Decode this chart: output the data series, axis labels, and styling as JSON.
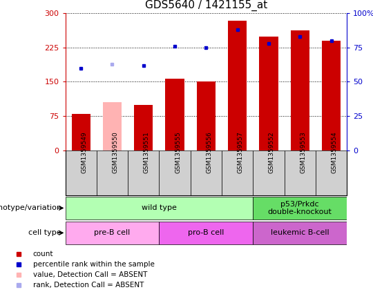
{
  "title": "GDS5640 / 1421155_at",
  "samples": [
    "GSM1359549",
    "GSM1359550",
    "GSM1359551",
    "GSM1359555",
    "GSM1359556",
    "GSM1359557",
    "GSM1359552",
    "GSM1359553",
    "GSM1359554"
  ],
  "bar_values": [
    80,
    105,
    100,
    157,
    150,
    283,
    248,
    263,
    240
  ],
  "bar_colors": [
    "#cc0000",
    "#ffb3b3",
    "#cc0000",
    "#cc0000",
    "#cc0000",
    "#cc0000",
    "#cc0000",
    "#cc0000",
    "#cc0000"
  ],
  "dot_values": [
    60,
    63,
    62,
    76,
    75,
    88,
    78,
    83,
    80
  ],
  "dot_colors": [
    "#0000cc",
    "#aaaaee",
    "#0000cc",
    "#0000cc",
    "#0000cc",
    "#0000cc",
    "#0000cc",
    "#0000cc",
    "#0000cc"
  ],
  "ylim_left": [
    0,
    300
  ],
  "ylim_right": [
    0,
    100
  ],
  "yticks_left": [
    0,
    75,
    150,
    225,
    300
  ],
  "yticks_right": [
    0,
    25,
    50,
    75,
    100
  ],
  "ytick_labels_left": [
    "0",
    "75",
    "150",
    "225",
    "300"
  ],
  "ytick_labels_right": [
    "0",
    "25",
    "50",
    "75",
    "100%"
  ],
  "genotype_groups": [
    {
      "label": "wild type",
      "start": 0,
      "end": 6,
      "color": "#b3ffb3"
    },
    {
      "label": "p53/Prkdc\ndouble-knockout",
      "start": 6,
      "end": 9,
      "color": "#66dd66"
    }
  ],
  "celltype_groups": [
    {
      "label": "pre-B cell",
      "start": 0,
      "end": 3,
      "color": "#ffaaee"
    },
    {
      "label": "pro-B cell",
      "start": 3,
      "end": 6,
      "color": "#ee66ee"
    },
    {
      "label": "leukemic B-cell",
      "start": 6,
      "end": 9,
      "color": "#cc66cc"
    }
  ],
  "legend_items": [
    {
      "label": "count",
      "color": "#cc0000"
    },
    {
      "label": "percentile rank within the sample",
      "color": "#0000cc"
    },
    {
      "label": "value, Detection Call = ABSENT",
      "color": "#ffb3b3"
    },
    {
      "label": "rank, Detection Call = ABSENT",
      "color": "#aaaaee"
    }
  ],
  "left_axis_color": "#cc0000",
  "right_axis_color": "#0000cc",
  "row_label_genotype": "genotype/variation",
  "row_label_celltype": "cell type"
}
